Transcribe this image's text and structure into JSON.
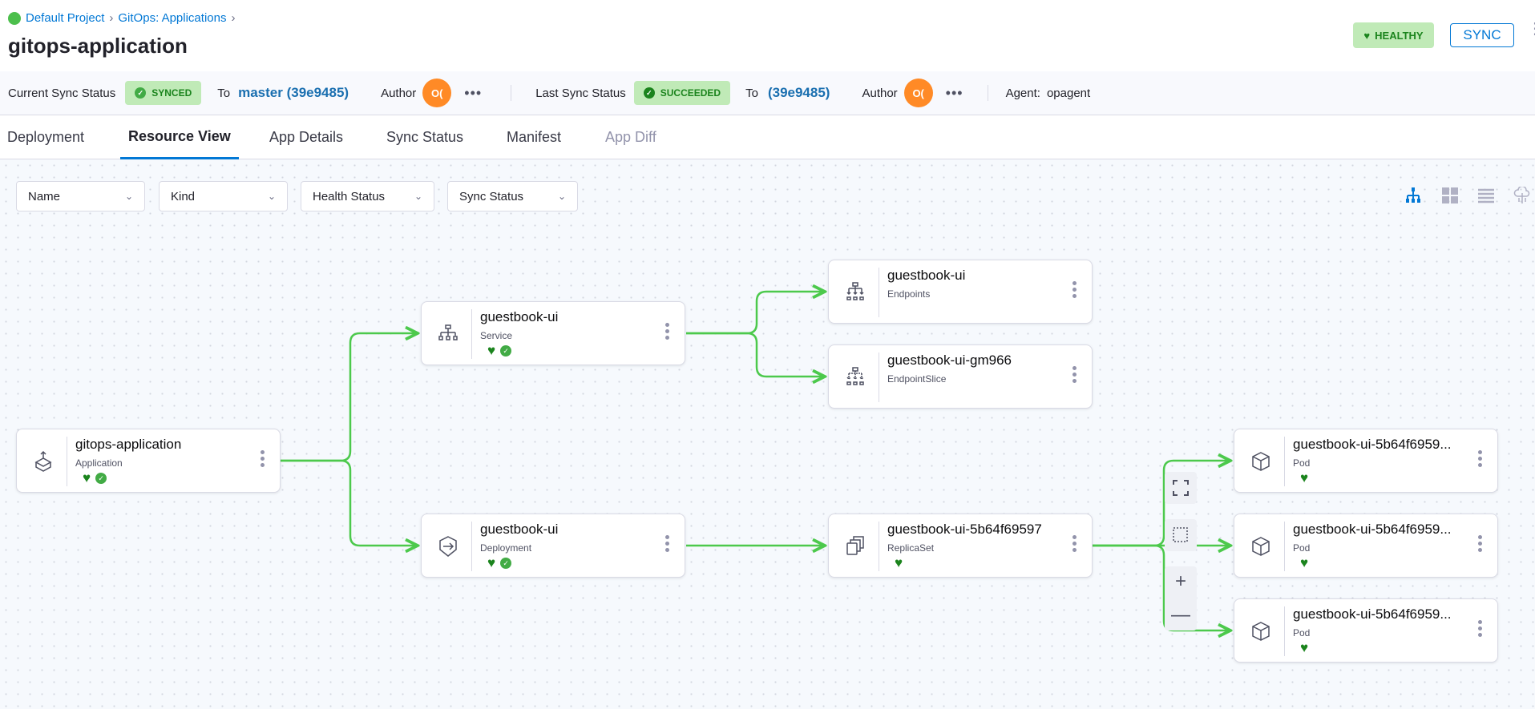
{
  "breadcrumb": {
    "project": "Default Project",
    "section": "GitOps: Applications"
  },
  "title": "gitops-application",
  "header": {
    "health_label": "HEALTHY",
    "sync_button": "SYNC"
  },
  "sync_bar": {
    "current_label": "Current Sync Status",
    "current_status": "SYNCED",
    "to_label": "To",
    "current_revision": "master (39e9485)",
    "author_label": "Author",
    "author_avatar": "O(",
    "more": "•••",
    "last_label": "Last Sync Status",
    "last_status": "SUCCEEDED",
    "last_to_label": "To",
    "last_revision": "(39e9485)",
    "last_author_label": "Author",
    "last_author_avatar": "O(",
    "last_more": "•••",
    "agent_label": "Agent:",
    "agent_value": "opagent"
  },
  "tabs": [
    {
      "label": "Deployment"
    },
    {
      "label": "Resource View",
      "active": true
    },
    {
      "label": "App Details"
    },
    {
      "label": "Sync Status"
    },
    {
      "label": "Manifest"
    },
    {
      "label": "App Diff",
      "disabled": true
    }
  ],
  "filters": [
    {
      "label": "Name"
    },
    {
      "label": "Kind"
    },
    {
      "label": "Health Status"
    },
    {
      "label": "Sync Status"
    }
  ],
  "view_icons": [
    "tree-view-icon",
    "grid-view-icon",
    "list-view-icon",
    "cluster-view-icon"
  ],
  "colors": {
    "accent": "#0278d5",
    "healthy": "#1b841d",
    "synced": "#42ab45",
    "edge": "#4cc94c",
    "avatar": "#ff8a26"
  },
  "nodes": [
    {
      "name": "gitops-application",
      "kind": "Application",
      "healthy": true,
      "synced": true,
      "icon": "application-icon"
    },
    {
      "name": "guestbook-ui",
      "kind": "Service",
      "healthy": true,
      "synced": true,
      "icon": "service-icon"
    },
    {
      "name": "guestbook-ui",
      "kind": "Deployment",
      "healthy": true,
      "synced": true,
      "icon": "deployment-icon"
    },
    {
      "name": "guestbook-ui",
      "kind": "Endpoints",
      "icon": "endpoints-icon"
    },
    {
      "name": "guestbook-ui-gm966",
      "kind": "EndpointSlice",
      "icon": "endpointslice-icon"
    },
    {
      "name": "guestbook-ui-5b64f69597",
      "kind": "ReplicaSet",
      "healthy": true,
      "icon": "replicaset-icon"
    },
    {
      "name": "guestbook-ui-5b64f6959...",
      "kind": "Pod",
      "healthy": true,
      "icon": "pod-icon"
    },
    {
      "name": "guestbook-ui-5b64f6959...",
      "kind": "Pod",
      "healthy": true,
      "icon": "pod-icon"
    },
    {
      "name": "guestbook-ui-5b64f6959...",
      "kind": "Pod",
      "healthy": true,
      "icon": "pod-icon"
    }
  ],
  "zoom_controls": [
    "fit-view-icon",
    "select-area-icon",
    "zoom-in-icon",
    "zoom-out-icon"
  ]
}
